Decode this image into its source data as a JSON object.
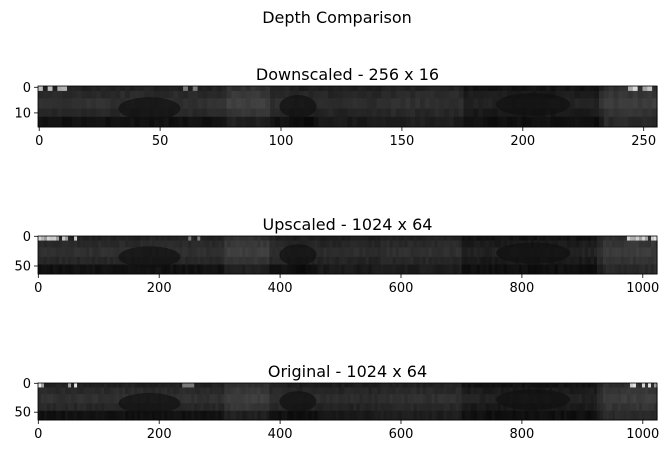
{
  "figure": {
    "title": "Depth Comparison"
  },
  "chart_data": [
    {
      "type": "heatmap",
      "title": "Downscaled - 256 x 16",
      "colormap": "gray",
      "image_size": [
        256,
        16
      ],
      "x_ticks": [
        0,
        50,
        100,
        150,
        200,
        250
      ],
      "y_ticks": [
        0,
        10
      ],
      "xlim": [
        -0.5,
        255.5
      ],
      "ylim": [
        15.5,
        -0.5
      ],
      "x_tick_labels": [
        "0",
        "50",
        "100",
        "150",
        "200",
        "250"
      ],
      "y_tick_labels": [
        "0",
        "10"
      ]
    },
    {
      "type": "heatmap",
      "title": "Upscaled - 1024 x 64",
      "colormap": "gray",
      "image_size": [
        1024,
        64
      ],
      "x_ticks": [
        0,
        200,
        400,
        600,
        800,
        1000
      ],
      "y_ticks": [
        0,
        50
      ],
      "xlim": [
        -0.5,
        1023.5
      ],
      "ylim": [
        63.5,
        -0.5
      ],
      "x_tick_labels": [
        "0",
        "200",
        "400",
        "600",
        "800",
        "1000"
      ],
      "y_tick_labels": [
        "0",
        "50"
      ]
    },
    {
      "type": "heatmap",
      "title": "Original - 1024 x 64",
      "colormap": "gray",
      "image_size": [
        1024,
        64
      ],
      "x_ticks": [
        0,
        200,
        400,
        600,
        800,
        1000
      ],
      "y_ticks": [
        0,
        50
      ],
      "xlim": [
        -0.5,
        1023.5
      ],
      "ylim": [
        63.5,
        -0.5
      ],
      "x_tick_labels": [
        "0",
        "200",
        "400",
        "600",
        "800",
        "1000"
      ],
      "y_tick_labels": [
        "0",
        "50"
      ]
    }
  ]
}
